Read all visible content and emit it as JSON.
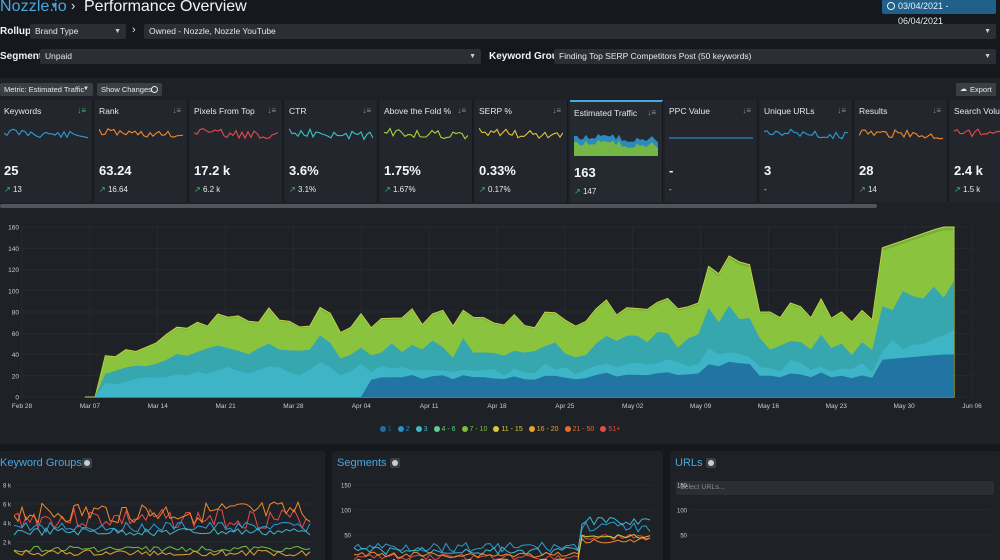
{
  "header": {
    "logo": "Nozzle.io",
    "title": "Performance Overview",
    "date_range": "03/04/2021 - 06/04/2021"
  },
  "filters": {
    "rollup_label": "Rollup",
    "rollup_value": "Brand Type",
    "rollup_detail": "Owned - Nozzle, Nozzle YouTube",
    "segment_label": "Segment",
    "segment_value": "Unpaid",
    "keyword_group_label": "Keyword Group",
    "keyword_group_value": "Finding Top SERP Competitors Post (50 keywords)"
  },
  "toolbar": {
    "metric_select": "Metric: Estimated Traffic",
    "show_changes": "Show Changes",
    "export": "Export"
  },
  "metrics": [
    {
      "label": "Keywords",
      "value": "25",
      "change": "13",
      "color": "#2f9bd6",
      "sort_active": true
    },
    {
      "label": "Rank",
      "value": "63.24",
      "change": "16.64",
      "color": "#f28a2c",
      "sort_active": false
    },
    {
      "label": "Pixels From Top",
      "value": "17.2 k",
      "change": "6.2 k",
      "color": "#e84a4a",
      "sort_active": false
    },
    {
      "label": "CTR",
      "value": "3.6%",
      "change": "3.1%",
      "color": "#35c6c6",
      "sort_active": false
    },
    {
      "label": "Above the Fold %",
      "value": "1.75%",
      "change": "1.67%",
      "color": "#a5d13a",
      "sort_active": false
    },
    {
      "label": "SERP %",
      "value": "0.33%",
      "change": "0.17%",
      "color": "#e2c53a",
      "sort_active": false
    },
    {
      "label": "Estimated Traffic",
      "value": "163",
      "change": "147",
      "color": "#6fbf4a",
      "sort_active": false,
      "active": true
    },
    {
      "label": "PPC Value",
      "value": "-",
      "change": "-",
      "color": "#2f9bd6",
      "sort_active": false
    },
    {
      "label": "Unique URLs",
      "value": "3",
      "change": "-",
      "color": "#2f9bd6",
      "sort_active": false
    },
    {
      "label": "Results",
      "value": "28",
      "change": "14",
      "color": "#f28a2c",
      "sort_active": false
    },
    {
      "label": "Search Volum",
      "value": "2.4 k",
      "change": "1.5 k",
      "color": "#e84a4a",
      "sort_active": false
    }
  ],
  "chart_data": {
    "type": "area",
    "x": [
      "Feb 28",
      "Mar 07",
      "Mar 14",
      "Mar 21",
      "Mar 28",
      "Apr 04",
      "Apr 11",
      "Apr 18",
      "Apr 25",
      "May 02",
      "May 09",
      "May 16",
      "May 23",
      "May 30",
      "Jun 06"
    ],
    "ylim": [
      0,
      160
    ],
    "yticks": [
      0,
      20,
      40,
      60,
      80,
      100,
      120,
      140,
      160
    ],
    "series": [
      {
        "name": "1",
        "color": "#1f6f9e"
      },
      {
        "name": "2",
        "color": "#2a8fc6"
      },
      {
        "name": "3",
        "color": "#3fb6c9"
      },
      {
        "name": "4 - 6",
        "color": "#5fcf8d"
      },
      {
        "name": "7 - 10",
        "color": "#7dbb3a"
      },
      {
        "name": "11 - 15",
        "color": "#d4c937"
      },
      {
        "name": "16 - 20",
        "color": "#e8a32c"
      },
      {
        "name": "21 - 50",
        "color": "#e86a2c"
      },
      {
        "name": "51+",
        "color": "#e84a4a"
      }
    ]
  },
  "panels": {
    "keyword_groups": {
      "title": "Keyword Groups",
      "yticks": [
        "8 k",
        "6 k",
        "4 k",
        "2 k"
      ]
    },
    "segments": {
      "title": "Segments",
      "yticks": [
        "150",
        "100",
        "50"
      ]
    },
    "urls": {
      "title": "URLs",
      "placeholder": "Select URLs...",
      "yticks": [
        "150",
        "100",
        "50"
      ]
    }
  }
}
